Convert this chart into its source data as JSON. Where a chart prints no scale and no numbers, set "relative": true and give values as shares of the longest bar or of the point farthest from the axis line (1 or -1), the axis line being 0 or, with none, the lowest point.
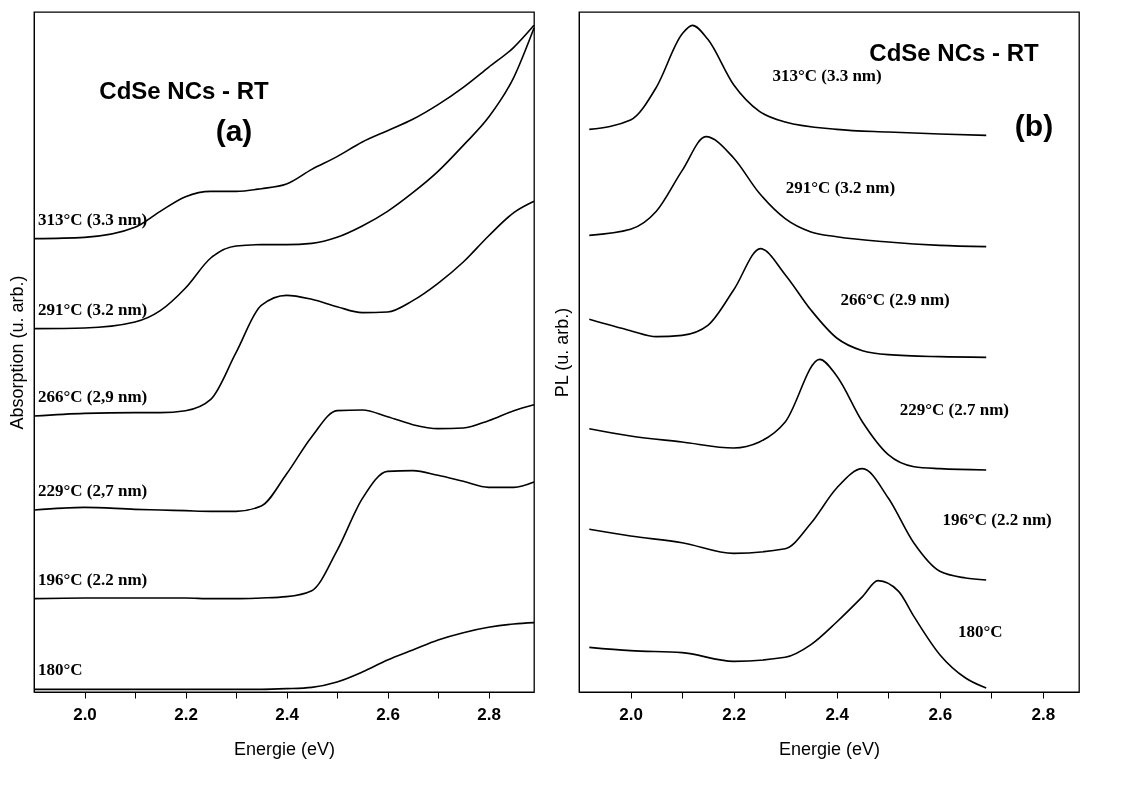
{
  "chart_data": [
    {
      "type": "line",
      "title": "(a)",
      "subtitle": "CdSe NCs - RT",
      "xlabel": "Energie (eV)",
      "ylabel": "Absorption (u. arb.)",
      "relative": true,
      "x": [
        1.9,
        2.0,
        2.1,
        2.15,
        2.2,
        2.25,
        2.3,
        2.35,
        2.4,
        2.45,
        2.5,
        2.55,
        2.6,
        2.65,
        2.7,
        2.75,
        2.8,
        2.85,
        2.89
      ],
      "xlim": [
        1.9,
        2.89
      ],
      "xticks": [
        {
          "value": 2.0,
          "label": "2.0"
        },
        {
          "value": 2.1,
          "label": null
        },
        {
          "value": 2.2,
          "label": "2.2"
        },
        {
          "value": 2.3,
          "label": null
        },
        {
          "value": 2.4,
          "label": "2.4"
        },
        {
          "value": 2.5,
          "label": null
        },
        {
          "value": 2.6,
          "label": "2.6"
        },
        {
          "value": 2.7,
          "label": null
        },
        {
          "value": 2.8,
          "label": "2.8"
        }
      ],
      "series": [
        {
          "name": "313°C (3.3 nm)",
          "color": "#000000",
          "values": [
            0.68,
            0.682,
            0.697,
            0.721,
            0.743,
            0.751,
            0.751,
            0.755,
            0.762,
            0.784,
            0.803,
            0.825,
            0.842,
            0.859,
            0.881,
            0.907,
            0.937,
            0.967,
            1.0
          ]
        },
        {
          "name": "291°C (3.2 nm)",
          "color": "#000000",
          "values": [
            0.545,
            0.546,
            0.555,
            0.572,
            0.606,
            0.651,
            0.669,
            0.671,
            0.671,
            0.673,
            0.682,
            0.699,
            0.721,
            0.749,
            0.781,
            0.82,
            0.862,
            0.922,
            0.996
          ]
        },
        {
          "name": "266°C (2,9 nm)",
          "color": "#000000",
          "values": [
            0.414,
            0.418,
            0.419,
            0.419,
            0.422,
            0.439,
            0.509,
            0.58,
            0.595,
            0.589,
            0.578,
            0.569,
            0.57,
            0.587,
            0.613,
            0.645,
            0.684,
            0.719,
            0.736
          ]
        },
        {
          "name": "229°C (2,7 nm)",
          "color": "#000000",
          "values": [
            0.273,
            0.277,
            0.274,
            0.273,
            0.272,
            0.271,
            0.271,
            0.279,
            0.327,
            0.383,
            0.422,
            0.423,
            0.413,
            0.401,
            0.395,
            0.396,
            0.407,
            0.422,
            0.431
          ]
        },
        {
          "name": "196°C (2.2 nm)",
          "color": "#000000",
          "values": [
            0.14,
            0.141,
            0.141,
            0.141,
            0.141,
            0.14,
            0.14,
            0.141,
            0.143,
            0.152,
            0.212,
            0.29,
            0.331,
            0.332,
            0.325,
            0.316,
            0.307,
            0.307,
            0.315
          ]
        },
        {
          "name": "180°C",
          "color": "#000000",
          "values": [
            0.004,
            0.004,
            0.004,
            0.004,
            0.004,
            0.004,
            0.004,
            0.004,
            0.005,
            0.007,
            0.015,
            0.03,
            0.048,
            0.063,
            0.078,
            0.089,
            0.097,
            0.102,
            0.104
          ]
        }
      ]
    },
    {
      "type": "line",
      "title": "(b)",
      "subtitle": "CdSe NCs - RT",
      "xlabel": "Energie (eV)",
      "ylabel": "PL (u. arb.)",
      "relative": true,
      "xlim": [
        1.9,
        2.87
      ],
      "xticks": [
        {
          "value": 2.0,
          "label": "2.0"
        },
        {
          "value": 2.1,
          "label": null
        },
        {
          "value": 2.2,
          "label": "2.2"
        },
        {
          "value": 2.3,
          "label": null
        },
        {
          "value": 2.4,
          "label": "2.4"
        },
        {
          "value": 2.5,
          "label": null
        },
        {
          "value": 2.6,
          "label": "2.6"
        },
        {
          "value": 2.7,
          "label": null
        },
        {
          "value": 2.8,
          "label": "2.8"
        }
      ],
      "series": [
        {
          "name": "313°C (3.3 nm)",
          "color": "#000000",
          "x": [
            1.92,
            2.0,
            2.05,
            2.1,
            2.12,
            2.15,
            2.2,
            2.25,
            2.3,
            2.4,
            2.5,
            2.6,
            2.69
          ],
          "values": [
            0.844,
            0.858,
            0.907,
            0.987,
            1.0,
            0.979,
            0.911,
            0.871,
            0.855,
            0.844,
            0.84,
            0.837,
            0.835
          ]
        },
        {
          "name": "291°C (3.2 nm)",
          "color": "#000000",
          "x": [
            1.92,
            2.0,
            2.05,
            2.1,
            2.146,
            2.2,
            2.25,
            2.3,
            2.35,
            2.4,
            2.5,
            2.6,
            2.69
          ],
          "values": [
            0.685,
            0.694,
            0.721,
            0.782,
            0.833,
            0.801,
            0.748,
            0.71,
            0.69,
            0.683,
            0.675,
            0.67,
            0.668
          ]
        },
        {
          "name": "266°C (2.9 nm)",
          "color": "#000000",
          "x": [
            1.92,
            2.0,
            2.05,
            2.1,
            2.15,
            2.2,
            2.252,
            2.3,
            2.35,
            2.4,
            2.45,
            2.5,
            2.6,
            2.69
          ],
          "values": [
            0.559,
            0.542,
            0.533,
            0.535,
            0.55,
            0.603,
            0.665,
            0.626,
            0.573,
            0.531,
            0.512,
            0.506,
            0.503,
            0.502
          ]
        },
        {
          "name": "229°C (2.7 nm)",
          "color": "#000000",
          "x": [
            1.92,
            2.0,
            2.1,
            2.2,
            2.25,
            2.3,
            2.367,
            2.4,
            2.45,
            2.5,
            2.55,
            2.6,
            2.69
          ],
          "values": [
            0.395,
            0.384,
            0.375,
            0.366,
            0.375,
            0.405,
            0.499,
            0.474,
            0.405,
            0.356,
            0.338,
            0.335,
            0.333
          ]
        },
        {
          "name": "196°C (2.2 nm)",
          "color": "#000000",
          "x": [
            1.92,
            2.0,
            2.1,
            2.2,
            2.3,
            2.35,
            2.4,
            2.45,
            2.5,
            2.55,
            2.6,
            2.65,
            2.69
          ],
          "values": [
            0.244,
            0.234,
            0.224,
            0.208,
            0.215,
            0.253,
            0.306,
            0.335,
            0.291,
            0.223,
            0.181,
            0.171,
            0.168
          ]
        },
        {
          "name": "180°C",
          "color": "#000000",
          "x": [
            1.92,
            2.0,
            2.1,
            2.2,
            2.3,
            2.35,
            2.4,
            2.45,
            2.48,
            2.52,
            2.55,
            2.6,
            2.65,
            2.69
          ],
          "values": [
            0.067,
            0.062,
            0.059,
            0.046,
            0.052,
            0.071,
            0.105,
            0.143,
            0.167,
            0.151,
            0.113,
            0.056,
            0.021,
            0.006
          ]
        }
      ]
    }
  ]
}
